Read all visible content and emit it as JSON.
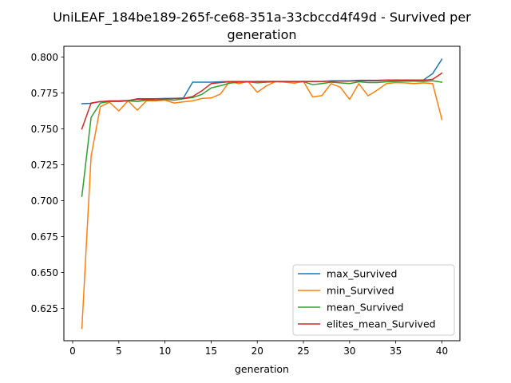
{
  "chart_data": {
    "type": "line",
    "title_line1": "UniLEAF_184be189-265f-ce68-351a-33cbccd4f49d - Survived per",
    "title_line2": "generation",
    "xlabel": "generation",
    "ylabel": "",
    "xlim": [
      -0.95,
      41.95
    ],
    "ylim": [
      0.6025,
      0.8075
    ],
    "xticks": [
      0,
      5,
      10,
      15,
      20,
      25,
      30,
      35,
      40
    ],
    "yticks": [
      0.625,
      0.65,
      0.675,
      0.7,
      0.725,
      0.75,
      0.775,
      0.8
    ],
    "ytick_labels": [
      "0.625",
      "0.650",
      "0.675",
      "0.700",
      "0.725",
      "0.750",
      "0.775",
      "0.800"
    ],
    "grid": false,
    "legend_position": "lower right",
    "x": [
      1,
      2,
      3,
      4,
      5,
      6,
      7,
      8,
      9,
      10,
      11,
      12,
      13,
      14,
      15,
      16,
      17,
      18,
      19,
      20,
      21,
      22,
      23,
      24,
      25,
      26,
      27,
      28,
      29,
      30,
      31,
      32,
      33,
      34,
      35,
      36,
      37,
      38,
      39,
      40
    ],
    "series": [
      {
        "name": "max_Survived",
        "color": "#1f77b4",
        "values": [
          0.7675,
          0.7678,
          0.769,
          0.769,
          0.769,
          0.7695,
          0.771,
          0.771,
          0.771,
          0.7712,
          0.7712,
          0.7715,
          0.7825,
          0.7825,
          0.7825,
          0.7828,
          0.783,
          0.783,
          0.783,
          0.783,
          0.783,
          0.783,
          0.783,
          0.783,
          0.783,
          0.783,
          0.783,
          0.7835,
          0.7835,
          0.7835,
          0.7838,
          0.7838,
          0.7838,
          0.784,
          0.784,
          0.784,
          0.784,
          0.784,
          0.7885,
          0.7985
        ]
      },
      {
        "name": "min_Survived",
        "color": "#ff7f0e",
        "values": [
          0.611,
          0.731,
          0.7655,
          0.7685,
          0.7625,
          0.7695,
          0.763,
          0.7695,
          0.7695,
          0.77,
          0.768,
          0.7688,
          0.7695,
          0.7712,
          0.7715,
          0.7742,
          0.783,
          0.7815,
          0.783,
          0.7755,
          0.78,
          0.783,
          0.7825,
          0.7818,
          0.783,
          0.7722,
          0.7732,
          0.7815,
          0.779,
          0.7705,
          0.7815,
          0.773,
          0.777,
          0.7815,
          0.7822,
          0.782,
          0.7815,
          0.782,
          0.7815,
          0.7565
        ]
      },
      {
        "name": "mean_Survived",
        "color": "#2ca02c",
        "values": [
          0.703,
          0.758,
          0.768,
          0.769,
          0.769,
          0.7695,
          0.769,
          0.77,
          0.77,
          0.7705,
          0.77,
          0.771,
          0.7718,
          0.774,
          0.7785,
          0.78,
          0.7818,
          0.7825,
          0.7828,
          0.782,
          0.7825,
          0.7828,
          0.7828,
          0.7828,
          0.7828,
          0.7808,
          0.7815,
          0.7825,
          0.782,
          0.7815,
          0.7828,
          0.7822,
          0.7822,
          0.7828,
          0.783,
          0.7832,
          0.7832,
          0.783,
          0.7835,
          0.7825
        ]
      },
      {
        "name": "elites_mean_Survived",
        "color": "#d62728",
        "values": [
          0.75,
          0.768,
          0.769,
          0.7695,
          0.7695,
          0.7698,
          0.7705,
          0.7705,
          0.7708,
          0.771,
          0.7712,
          0.7712,
          0.7725,
          0.7765,
          0.7815,
          0.7822,
          0.7828,
          0.7828,
          0.7828,
          0.783,
          0.783,
          0.783,
          0.783,
          0.783,
          0.783,
          0.783,
          0.783,
          0.7832,
          0.7832,
          0.7832,
          0.7835,
          0.7835,
          0.7835,
          0.7838,
          0.7838,
          0.7838,
          0.7838,
          0.7838,
          0.7845,
          0.7888
        ]
      }
    ]
  }
}
